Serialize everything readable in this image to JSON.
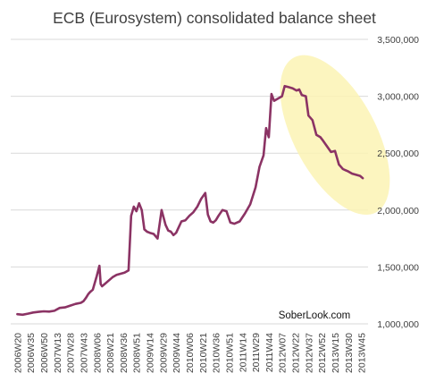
{
  "chart_data": {
    "type": "line",
    "title": "ECB (Eurosystem) consolidated balance sheet",
    "xlabel": "",
    "ylabel": "",
    "ylim": [
      1000000,
      3500000
    ],
    "yticks": [
      1000000,
      1500000,
      2000000,
      2500000,
      3000000,
      3500000
    ],
    "ytick_labels": [
      "1,000,000",
      "1,500,000",
      "2,000,000",
      "2,500,000",
      "3,000,000",
      "3,500,000"
    ],
    "y_axis_position": "right",
    "grid": true,
    "legend": "none",
    "x_tick_labels": [
      "2006W20",
      "2006W35",
      "2006W50",
      "2007W13",
      "2007W28",
      "2007W43",
      "2008W06",
      "2008W21",
      "2008W36",
      "2008W51",
      "2009W14",
      "2009W29",
      "2009W44",
      "2010W06",
      "2010W21",
      "2010W36",
      "2010W51",
      "2011W14",
      "2011W29",
      "2011W44",
      "2012W07",
      "2012W22",
      "2012W37",
      "2012W52",
      "2013W15",
      "2013W30",
      "2013W45"
    ],
    "series": [
      {
        "x": [
          0,
          0.4,
          0.8,
          1.2,
          1.6,
          2.0,
          2.4,
          2.8,
          3.2,
          3.6,
          4.0,
          4.4,
          4.8,
          5.0,
          5.2,
          5.35,
          5.5,
          5.7,
          6.0,
          6.2,
          6.3,
          6.4,
          6.6,
          6.9,
          7.2,
          7.5,
          7.8,
          8.1,
          8.4,
          8.6,
          8.8,
          9.0,
          9.2,
          9.4,
          9.6,
          9.8,
          10.0,
          10.3,
          10.6,
          10.9,
          11.2,
          11.4,
          11.6,
          11.8,
          12.0,
          12.2,
          12.4,
          12.7,
          13.0,
          13.3,
          13.6,
          13.9,
          14.2,
          14.4,
          14.6,
          14.8,
          15.0,
          15.2,
          15.5,
          15.8,
          16.1,
          16.4,
          16.8,
          17.2,
          17.6,
          18.0,
          18.3,
          18.6,
          18.8,
          19.0,
          19.2,
          19.4,
          19.7,
          20.0,
          20.2,
          20.5,
          20.8,
          21.1,
          21.3,
          21.5,
          21.8,
          22.0,
          22.3,
          22.6,
          22.9,
          23.1,
          23.4,
          23.7,
          24.0,
          24.3,
          24.6,
          24.8,
          25.0,
          25.3,
          25.6,
          25.9,
          26.1
        ],
        "y": [
          1085000,
          1080000,
          1090000,
          1100000,
          1105000,
          1110000,
          1108000,
          1115000,
          1140000,
          1145000,
          1160000,
          1175000,
          1185000,
          1200000,
          1230000,
          1260000,
          1280000,
          1300000,
          1420000,
          1510000,
          1350000,
          1330000,
          1350000,
          1380000,
          1410000,
          1430000,
          1440000,
          1450000,
          1470000,
          1950000,
          2030000,
          1990000,
          2060000,
          2000000,
          1830000,
          1810000,
          1800000,
          1790000,
          1750000,
          2000000,
          1870000,
          1820000,
          1810000,
          1780000,
          1800000,
          1850000,
          1900000,
          1910000,
          1950000,
          1980000,
          2030000,
          2100000,
          2150000,
          1960000,
          1900000,
          1890000,
          1910000,
          1950000,
          2000000,
          1990000,
          1890000,
          1880000,
          1900000,
          1970000,
          2050000,
          2200000,
          2380000,
          2480000,
          2720000,
          2640000,
          3020000,
          2960000,
          2980000,
          3000000,
          3090000,
          3080000,
          3070000,
          3050000,
          3060000,
          3010000,
          3000000,
          2830000,
          2790000,
          2660000,
          2640000,
          2610000,
          2560000,
          2510000,
          2520000,
          2400000,
          2360000,
          2350000,
          2340000,
          2320000,
          2310000,
          2300000,
          2280000
        ]
      }
    ],
    "annotations": [
      {
        "type": "ellipse-highlight",
        "color": "#fbf3b4",
        "around": "2012W22 to 2013W45 decline"
      }
    ],
    "watermark": "SoberLook.com",
    "line_color": "#8b3364",
    "grid_color": "#d9d9d9"
  }
}
